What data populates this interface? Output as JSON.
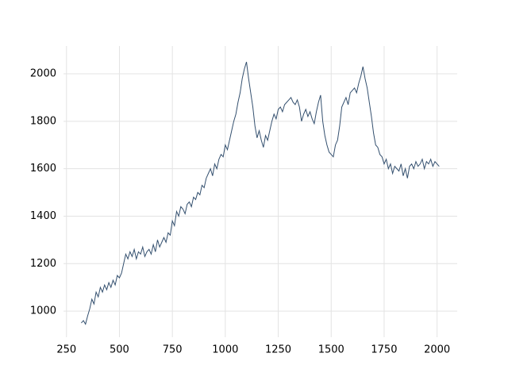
{
  "chart_data": {
    "type": "line",
    "x": [
      320,
      330,
      340,
      350,
      360,
      370,
      380,
      390,
      400,
      410,
      420,
      430,
      440,
      450,
      460,
      470,
      480,
      490,
      500,
      510,
      520,
      530,
      540,
      550,
      560,
      570,
      580,
      590,
      600,
      610,
      620,
      630,
      640,
      650,
      660,
      670,
      680,
      690,
      700,
      710,
      720,
      730,
      740,
      750,
      760,
      770,
      780,
      790,
      800,
      810,
      820,
      830,
      840,
      850,
      860,
      870,
      880,
      890,
      900,
      910,
      920,
      930,
      940,
      950,
      960,
      970,
      980,
      990,
      1000,
      1010,
      1020,
      1030,
      1040,
      1050,
      1060,
      1070,
      1080,
      1090,
      1100,
      1110,
      1120,
      1130,
      1140,
      1150,
      1160,
      1170,
      1180,
      1190,
      1200,
      1210,
      1220,
      1230,
      1240,
      1250,
      1260,
      1270,
      1280,
      1290,
      1300,
      1310,
      1320,
      1330,
      1340,
      1350,
      1360,
      1370,
      1380,
      1390,
      1400,
      1410,
      1420,
      1430,
      1440,
      1450,
      1460,
      1470,
      1480,
      1490,
      1500,
      1510,
      1520,
      1530,
      1540,
      1550,
      1560,
      1570,
      1580,
      1590,
      1600,
      1610,
      1620,
      1630,
      1640,
      1650,
      1660,
      1670,
      1680,
      1690,
      1700,
      1710,
      1720,
      1730,
      1740,
      1750,
      1760,
      1770,
      1780,
      1790,
      1800,
      1810,
      1820,
      1830,
      1840,
      1850,
      1860,
      1870,
      1880,
      1890,
      1900,
      1910,
      1920,
      1930,
      1940,
      1950,
      1960,
      1970,
      1980,
      1990,
      2000,
      2010
    ],
    "series": [
      {
        "color": "#34506f",
        "values": [
          950,
          960,
          945,
          980,
          1010,
          1050,
          1030,
          1080,
          1060,
          1100,
          1080,
          1110,
          1090,
          1120,
          1100,
          1130,
          1110,
          1150,
          1140,
          1160,
          1200,
          1240,
          1220,
          1250,
          1230,
          1260,
          1220,
          1250,
          1240,
          1270,
          1230,
          1250,
          1260,
          1240,
          1280,
          1250,
          1300,
          1270,
          1290,
          1310,
          1290,
          1330,
          1320,
          1380,
          1360,
          1420,
          1400,
          1440,
          1430,
          1410,
          1450,
          1460,
          1440,
          1480,
          1470,
          1500,
          1490,
          1530,
          1520,
          1560,
          1580,
          1600,
          1570,
          1620,
          1600,
          1640,
          1660,
          1650,
          1700,
          1680,
          1720,
          1760,
          1800,
          1830,
          1880,
          1920,
          1980,
          2020,
          2050,
          1980,
          1920,
          1860,
          1780,
          1730,
          1760,
          1720,
          1690,
          1740,
          1720,
          1760,
          1800,
          1830,
          1810,
          1850,
          1860,
          1840,
          1870,
          1880,
          1890,
          1900,
          1880,
          1870,
          1890,
          1860,
          1800,
          1830,
          1850,
          1820,
          1840,
          1810,
          1790,
          1840,
          1880,
          1910,
          1800,
          1740,
          1700,
          1670,
          1660,
          1650,
          1700,
          1720,
          1780,
          1860,
          1880,
          1900,
          1870,
          1920,
          1930,
          1940,
          1920,
          1960,
          1990,
          2030,
          1980,
          1940,
          1880,
          1820,
          1750,
          1700,
          1690,
          1660,
          1650,
          1620,
          1640,
          1600,
          1620,
          1580,
          1610,
          1600,
          1590,
          1620,
          1570,
          1600,
          1560,
          1610,
          1620,
          1600,
          1630,
          1610,
          1620,
          1640,
          1600,
          1630,
          1620,
          1640,
          1610,
          1630,
          1620,
          1610
        ]
      }
    ],
    "xlim": [
      236,
      2095
    ],
    "ylim": [
      890,
      2117
    ],
    "xticks": [
      250,
      500,
      750,
      1000,
      1250,
      1500,
      1750,
      2000
    ],
    "yticks": [
      1000,
      1200,
      1400,
      1600,
      1800,
      2000
    ],
    "grid": true
  }
}
